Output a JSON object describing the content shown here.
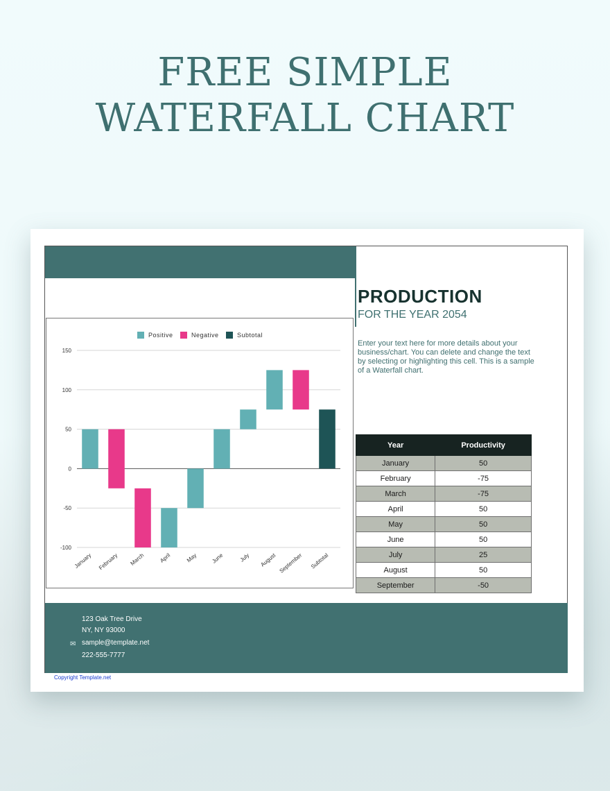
{
  "page": {
    "title_line1": "FREE SIMPLE",
    "title_line2": "WATERFALL CHART"
  },
  "header": {
    "title": "PRODUCTION",
    "subtitle": "FOR THE YEAR 2054",
    "description": "Enter your text here for more details about your business/chart. You can delete and change the text by selecting or highlighting this cell. This is a sample of a Waterfall chart."
  },
  "table": {
    "headers": [
      "Year",
      "Productivity"
    ],
    "rows": [
      [
        "January",
        "50"
      ],
      [
        "February",
        "-75"
      ],
      [
        "March",
        "-75"
      ],
      [
        "April",
        "50"
      ],
      [
        "May",
        "50"
      ],
      [
        "June",
        "50"
      ],
      [
        "July",
        "25"
      ],
      [
        "August",
        "50"
      ],
      [
        "September",
        "-50"
      ]
    ]
  },
  "footer": {
    "address1": "123 Oak Tree Drive",
    "address2": "NY, NY 93000",
    "email": "sample@template.net",
    "phone": "222-555-7777",
    "copyright": "Copyright Template.net"
  },
  "colors": {
    "positive": "#62b0b4",
    "negative": "#e8398a",
    "subtotal": "#1e5456",
    "band": "#417171"
  },
  "chart_data": {
    "type": "waterfall",
    "categories": [
      "January",
      "February",
      "March",
      "April",
      "May",
      "June",
      "July",
      "August",
      "September",
      "Subtotal"
    ],
    "values": [
      50,
      -75,
      -75,
      50,
      50,
      50,
      25,
      50,
      -50,
      75
    ],
    "kinds": [
      "positive",
      "negative",
      "negative",
      "positive",
      "positive",
      "positive",
      "positive",
      "positive",
      "negative",
      "subtotal"
    ],
    "legend": [
      "Positive",
      "Negative",
      "Subtotal"
    ],
    "legend_position": "top",
    "yticks": [
      "150",
      "100",
      "50",
      "0",
      "-50",
      "-100"
    ],
    "ylim": [
      -100,
      150
    ],
    "grid": true,
    "title": "",
    "xlabel": "",
    "ylabel": ""
  }
}
